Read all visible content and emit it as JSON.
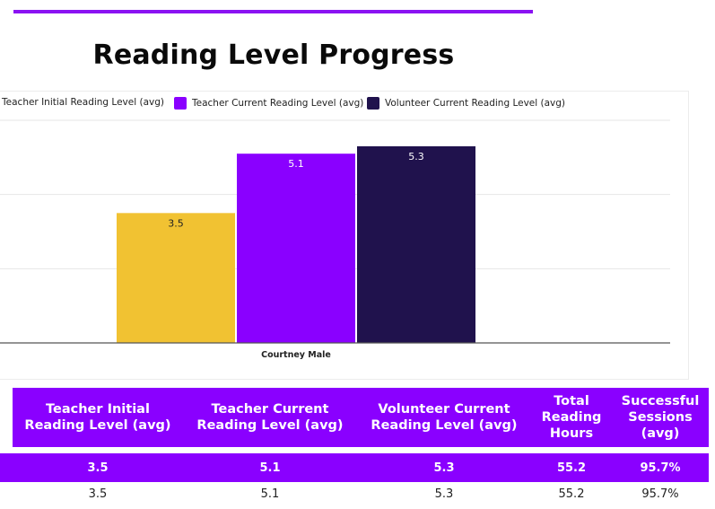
{
  "title": "Reading Level Progress",
  "colors": {
    "accent": "#8a00ff",
    "initial": "#f1c232",
    "current": "#8a00ff",
    "volunteer": "#20124d"
  },
  "chart_data": {
    "type": "bar",
    "categories": [
      "Courtney Male"
    ],
    "series": [
      {
        "name": "Teacher Initial Reading Level (avg)",
        "values": [
          3.5
        ],
        "color": "#f1c232",
        "label_color": "#222222"
      },
      {
        "name": "Teacher Current Reading Level (avg)",
        "values": [
          5.1
        ],
        "color": "#8a00ff",
        "label_color": "#ffffff"
      },
      {
        "name": "Volunteer Current Reading Level (avg)",
        "values": [
          5.3
        ],
        "color": "#20124d",
        "label_color": "#ffffff"
      }
    ],
    "ylim": [
      0,
      6
    ],
    "grid": true,
    "legend": "top"
  },
  "table": {
    "headers": [
      "Teacher Initial Reading Level (avg)",
      "Teacher Current Reading Level (avg)",
      "Volunteer Current Reading Level (avg)",
      "Total Reading Hours",
      "Successful Sessions (avg)"
    ],
    "rows": [
      [
        "3.5",
        "5.1",
        "5.3",
        "55.2",
        "95.7%"
      ],
      [
        "3.5",
        "5.1",
        "5.3",
        "55.2",
        "95.7%"
      ]
    ]
  }
}
